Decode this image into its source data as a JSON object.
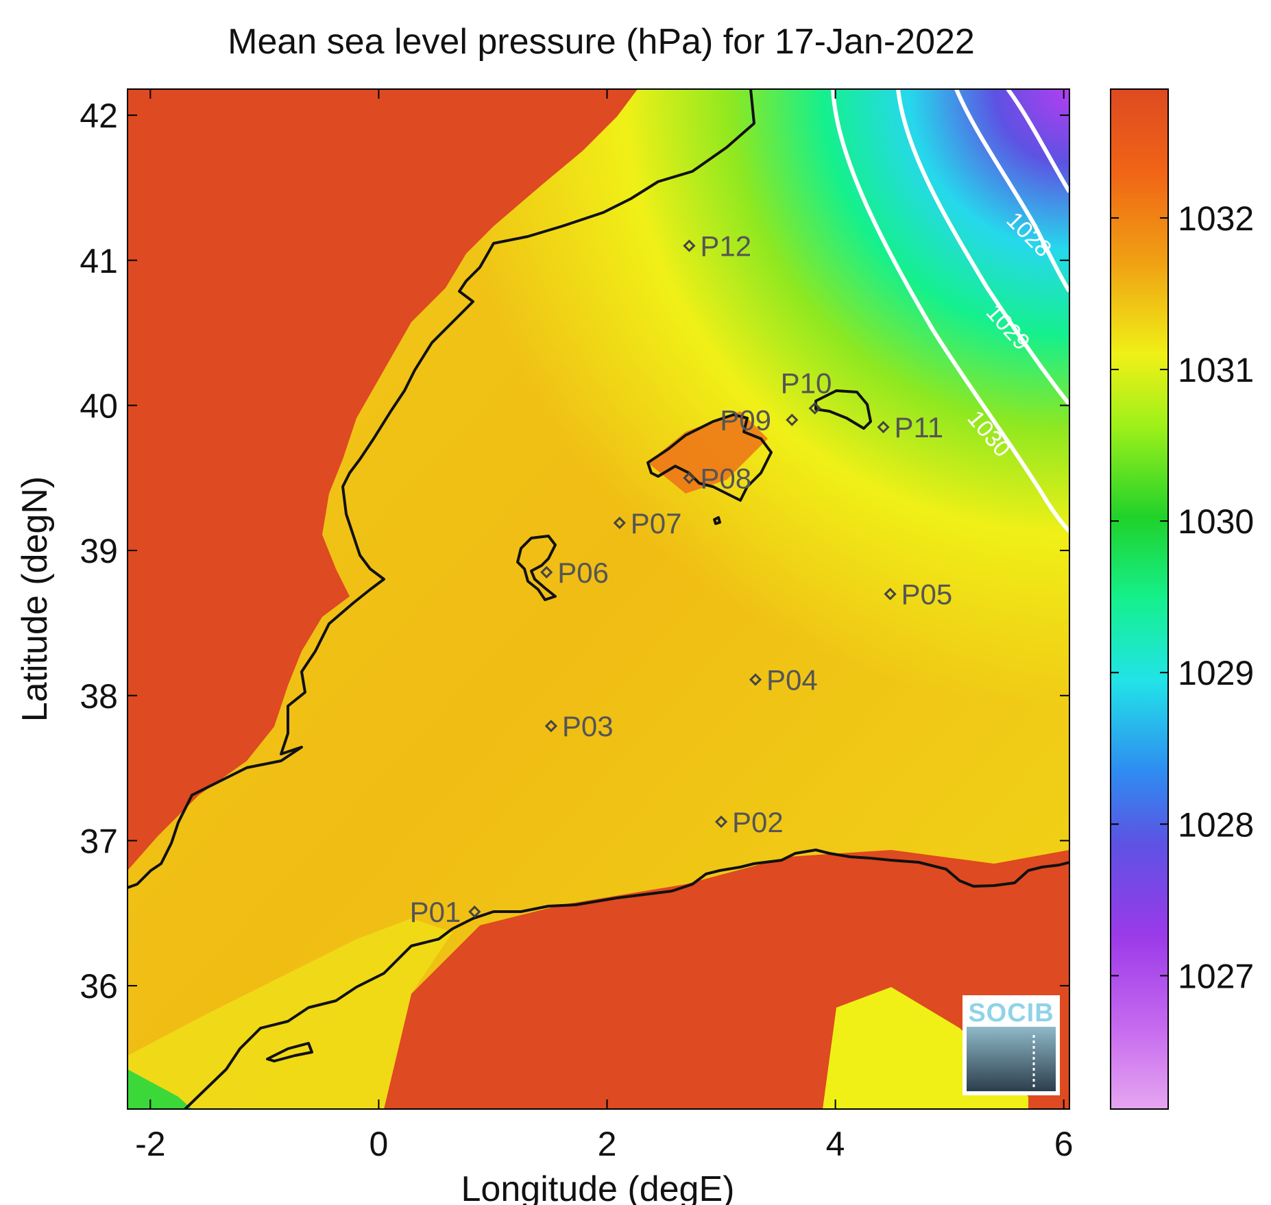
{
  "title": "Mean sea level pressure (hPa) for 17-Jan-2022",
  "xlabel": "Longitude (degE)",
  "ylabel": "Latitude (degN)",
  "x_ticks": [
    "-2",
    "0",
    "2",
    "4",
    "6"
  ],
  "x_tick_values": [
    -2,
    0,
    2,
    4,
    6
  ],
  "y_ticks": [
    "36",
    "37",
    "38",
    "39",
    "40",
    "41",
    "42"
  ],
  "y_tick_values": [
    36,
    37,
    38,
    39,
    40,
    41,
    42
  ],
  "xlim": [
    -2.2,
    6.05
  ],
  "ylim": [
    35.15,
    42.18
  ],
  "colorbar": {
    "ticks": [
      "1027",
      "1028",
      "1029",
      "1030",
      "1031",
      "1032"
    ],
    "tick_values": [
      1027,
      1028,
      1029,
      1030,
      1031,
      1032
    ],
    "range": [
      1026.12,
      1032.85
    ],
    "colors": [
      "#e6a6f0",
      "#a23ae8",
      "#5d52e3",
      "#2f8bf0",
      "#22e3e8",
      "#15f08d",
      "#20d22a",
      "#9ff01a",
      "#f0f017",
      "#f0a113",
      "#f06416",
      "#de4a21"
    ]
  },
  "contours": [
    {
      "label": "1028",
      "value": 1028
    },
    {
      "label": "1029",
      "value": 1029
    },
    {
      "label": "1030",
      "value": 1030
    }
  ],
  "points": [
    {
      "label": "P01",
      "lon": 0.84,
      "lat": 36.51
    },
    {
      "label": "P02",
      "lon": 3.0,
      "lat": 37.13
    },
    {
      "label": "P03",
      "lon": 1.51,
      "lat": 37.79
    },
    {
      "label": "P04",
      "lon": 3.3,
      "lat": 38.11
    },
    {
      "label": "P05",
      "lon": 4.48,
      "lat": 38.7
    },
    {
      "label": "P06",
      "lon": 1.47,
      "lat": 38.85
    },
    {
      "label": "P07",
      "lon": 2.11,
      "lat": 39.19
    },
    {
      "label": "P08",
      "lon": 2.72,
      "lat": 39.5
    },
    {
      "label": "P09",
      "lon": 3.62,
      "lat": 39.9
    },
    {
      "label": "P10",
      "lon": 3.82,
      "lat": 39.98
    },
    {
      "label": "P11",
      "lon": 4.42,
      "lat": 39.85
    },
    {
      "label": "P12",
      "lon": 2.72,
      "lat": 41.1
    }
  ],
  "logo": "SOCIB",
  "colors": {
    "land_high": "#de4a21",
    "sea": "#f0a113",
    "contour": "#ffffff",
    "coast": "#111111"
  }
}
